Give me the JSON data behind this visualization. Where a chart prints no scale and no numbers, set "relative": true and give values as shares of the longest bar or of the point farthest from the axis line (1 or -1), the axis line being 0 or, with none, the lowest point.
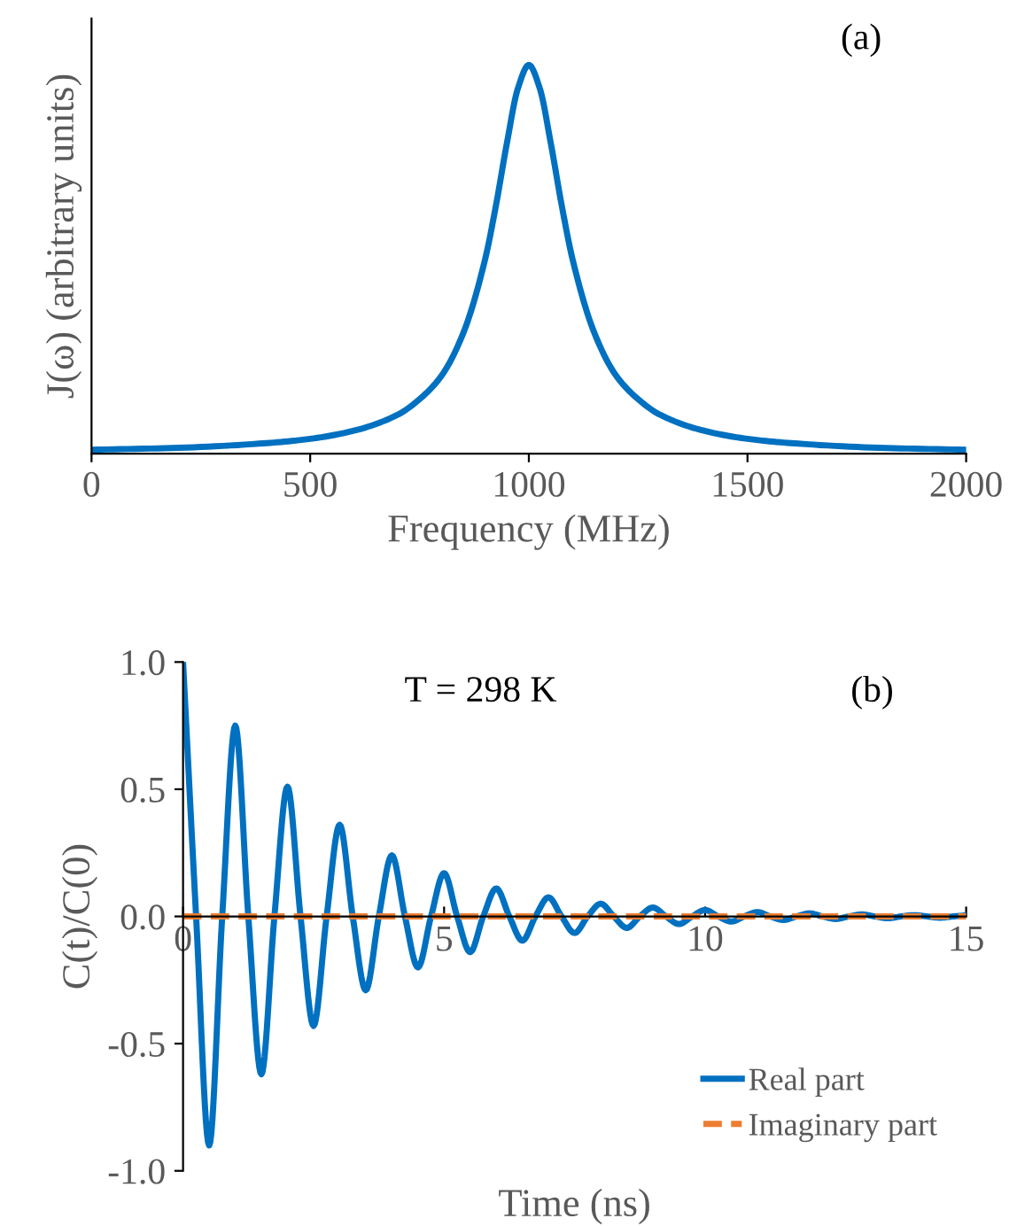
{
  "chart_data": [
    {
      "type": "line",
      "xlabel": "Frequency (MHz)",
      "ylabel": "J(ω) (arbitrary units)",
      "relative": true,
      "xlim": [
        0,
        2000
      ],
      "xticks": [
        0,
        500,
        1000,
        1500,
        2000
      ],
      "annotations": [
        "(a)"
      ],
      "x": [
        0,
        200,
        400,
        500,
        600,
        700,
        750,
        800,
        850,
        900,
        925,
        950,
        975,
        1000,
        1025,
        1050,
        1075,
        1100,
        1150,
        1200,
        1250,
        1300,
        1400,
        1500,
        1600,
        1800,
        2000
      ],
      "series": [
        {
          "color": "#0070c0",
          "values": [
            0.01,
            0.015,
            0.027,
            0.038,
            0.059,
            0.1,
            0.14,
            0.2,
            0.31,
            0.5,
            0.64,
            0.8,
            0.94,
            1,
            0.94,
            0.8,
            0.64,
            0.5,
            0.31,
            0.2,
            0.14,
            0.1,
            0.059,
            0.038,
            0.027,
            0.015,
            0.01
          ]
        }
      ]
    },
    {
      "type": "line",
      "xlabel": "Time (ns)",
      "ylabel": "C(t)/C(0)",
      "xlim": [
        0,
        15
      ],
      "ylim": [
        -1,
        1
      ],
      "xticks": [
        0,
        5,
        10,
        15
      ],
      "yticks": [
        {
          "value": -1,
          "label": "-1.0"
        },
        {
          "value": -0.5,
          "label": "-0.5"
        },
        {
          "value": 0,
          "label": "0.0"
        },
        {
          "value": 0.5,
          "label": "0.5"
        },
        {
          "value": 1,
          "label": "1.0"
        }
      ],
      "legend": "bottom right",
      "annotations": [
        "T = 298 K",
        "(b)"
      ],
      "x": [
        0,
        0.25,
        0.5,
        0.75,
        1,
        1.25,
        1.5,
        1.75,
        2,
        2.25,
        2.5,
        2.75,
        3,
        3.25,
        3.5,
        3.75,
        4,
        4.25,
        4.5,
        4.75,
        5,
        5.25,
        5.5,
        5.75,
        6,
        6.25,
        6.5,
        6.75,
        7,
        7.25,
        7.5,
        7.75,
        8,
        8.25,
        8.5,
        8.75,
        9,
        9.25,
        9.5,
        9.75,
        10,
        10.25,
        10.5,
        10.75,
        11,
        11.25,
        11.5,
        11.75,
        12,
        12.25,
        12.5,
        12.75,
        13,
        13.25,
        13.5,
        13.75,
        14,
        14.25,
        14.5,
        14.75,
        15
      ],
      "series": [
        {
          "name": "Real part",
          "color": "#0070c0",
          "line_style": "solid",
          "values": [
            1,
            0,
            -0.9,
            0,
            0.75,
            0,
            -0.62,
            0,
            0.51,
            0,
            -0.43,
            0,
            0.36,
            0,
            -0.29,
            0,
            0.24,
            0,
            -0.2,
            0,
            0.17,
            0,
            -0.14,
            0,
            0.11,
            0,
            -0.095,
            0,
            0.075,
            0,
            -0.065,
            0,
            0.05,
            0,
            -0.045,
            0,
            0.035,
            0,
            -0.03,
            0,
            0.025,
            0,
            -0.02,
            0,
            0.017,
            0,
            -0.014,
            0,
            0.012,
            0,
            -0.01,
            0,
            0.008,
            0,
            -0.007,
            0,
            0.005,
            0,
            -0.005,
            0,
            0.004
          ]
        },
        {
          "name": "Imaginary part",
          "color": "#ed7d31",
          "line_style": "dashed",
          "x": [
            0,
            15
          ],
          "values": [
            0,
            0
          ]
        }
      ]
    }
  ]
}
